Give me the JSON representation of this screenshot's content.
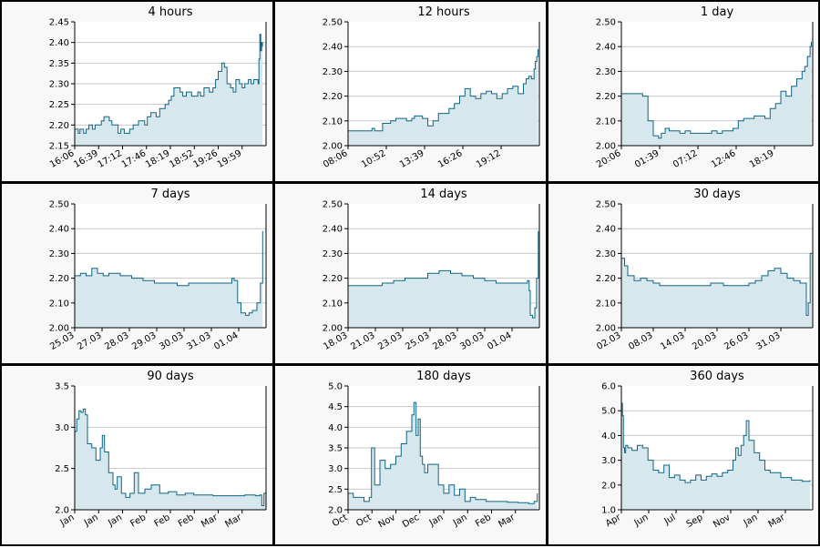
{
  "chart_data": [
    {
      "type": "area",
      "title": "4 hours",
      "ylim": [
        2.15,
        2.45
      ],
      "yticks": [
        "2.15",
        "2.20",
        "2.25",
        "2.30",
        "2.35",
        "2.40",
        "2.45"
      ],
      "xticks": [
        "16:06",
        "16:39",
        "17:12",
        "17:46",
        "18:19",
        "18:52",
        "19:26",
        "19:59"
      ],
      "xlim": [
        0,
        216
      ],
      "grid": true,
      "x": [
        0,
        4,
        6,
        10,
        13,
        16,
        20,
        23,
        26,
        30,
        33,
        36,
        39,
        42,
        46,
        49,
        52,
        56,
        59,
        62,
        66,
        69,
        72,
        76,
        79,
        82,
        86,
        89,
        92,
        96,
        99,
        102,
        106,
        109,
        112,
        116,
        119,
        122,
        126,
        129,
        132,
        136,
        139,
        142,
        146,
        149,
        152,
        156,
        159,
        162,
        166,
        169,
        172,
        176,
        179,
        182,
        186,
        189,
        192,
        196,
        199,
        202,
        205,
        207,
        208,
        209,
        210,
        211,
        212
      ],
      "values": [
        2.19,
        2.18,
        2.19,
        2.18,
        2.19,
        2.2,
        2.19,
        2.2,
        2.2,
        2.21,
        2.22,
        2.22,
        2.21,
        2.2,
        2.2,
        2.18,
        2.19,
        2.18,
        2.18,
        2.19,
        2.2,
        2.2,
        2.21,
        2.21,
        2.2,
        2.22,
        2.23,
        2.23,
        2.22,
        2.24,
        2.24,
        2.25,
        2.26,
        2.27,
        2.29,
        2.29,
        2.28,
        2.27,
        2.28,
        2.28,
        2.27,
        2.27,
        2.28,
        2.27,
        2.29,
        2.29,
        2.28,
        2.29,
        2.31,
        2.33,
        2.35,
        2.34,
        2.3,
        2.29,
        2.28,
        2.31,
        2.3,
        2.29,
        2.3,
        2.31,
        2.3,
        2.31,
        2.31,
        2.3,
        2.36,
        2.42,
        2.38,
        2.4,
        2.39
      ]
    },
    {
      "type": "area",
      "title": "12 hours",
      "ylim": [
        2.0,
        2.5
      ],
      "yticks": [
        "2.00",
        "2.10",
        "2.20",
        "2.30",
        "2.40",
        "2.50"
      ],
      "xticks": [
        "08:06",
        "10:52",
        "13:39",
        "16:26",
        "19:12"
      ],
      "xlim": [
        0,
        720
      ],
      "grid": true,
      "x": [
        0,
        30,
        60,
        90,
        100,
        130,
        160,
        180,
        200,
        220,
        240,
        250,
        260,
        280,
        300,
        320,
        340,
        360,
        380,
        400,
        420,
        440,
        460,
        480,
        500,
        520,
        540,
        560,
        580,
        600,
        620,
        640,
        660,
        670,
        680,
        690,
        700,
        705,
        710,
        715
      ],
      "values": [
        2.06,
        2.06,
        2.06,
        2.07,
        2.06,
        2.09,
        2.1,
        2.11,
        2.11,
        2.1,
        2.11,
        2.12,
        2.12,
        2.11,
        2.08,
        2.1,
        2.13,
        2.13,
        2.15,
        2.17,
        2.2,
        2.23,
        2.2,
        2.19,
        2.21,
        2.22,
        2.21,
        2.19,
        2.21,
        2.23,
        2.24,
        2.21,
        2.25,
        2.27,
        2.28,
        2.27,
        2.31,
        2.34,
        2.36,
        2.39
      ]
    },
    {
      "type": "area",
      "title": "1 day",
      "ylim": [
        2.0,
        2.5
      ],
      "yticks": [
        "2.00",
        "2.10",
        "2.20",
        "2.30",
        "2.40",
        "2.50"
      ],
      "xticks": [
        "20:06",
        "01:39",
        "07:12",
        "12:46",
        "18:19"
      ],
      "xlim": [
        0,
        1440
      ],
      "grid": true,
      "x": [
        0,
        60,
        120,
        160,
        200,
        240,
        280,
        300,
        330,
        360,
        400,
        440,
        480,
        520,
        560,
        600,
        640,
        680,
        720,
        760,
        800,
        840,
        880,
        920,
        960,
        1000,
        1040,
        1080,
        1120,
        1160,
        1200,
        1240,
        1280,
        1320,
        1360,
        1380,
        1400,
        1420,
        1430
      ],
      "values": [
        2.21,
        2.21,
        2.21,
        2.2,
        2.1,
        2.04,
        2.03,
        2.05,
        2.07,
        2.06,
        2.06,
        2.05,
        2.06,
        2.05,
        2.05,
        2.05,
        2.05,
        2.06,
        2.05,
        2.06,
        2.06,
        2.07,
        2.1,
        2.11,
        2.11,
        2.12,
        2.12,
        2.11,
        2.15,
        2.17,
        2.22,
        2.2,
        2.24,
        2.27,
        2.3,
        2.32,
        2.36,
        2.4,
        2.42
      ]
    },
    {
      "type": "area",
      "title": "7 days",
      "ylim": [
        2.0,
        2.5
      ],
      "yticks": [
        "2.00",
        "2.10",
        "2.20",
        "2.30",
        "2.40",
        "2.50"
      ],
      "xticks": [
        "25.03",
        "27.03",
        "28.03",
        "29.03",
        "30.03",
        "31.03",
        "01.04"
      ],
      "xlim": [
        0,
        168
      ],
      "grid": true,
      "x": [
        0,
        5,
        10,
        15,
        20,
        25,
        30,
        40,
        50,
        60,
        70,
        80,
        90,
        100,
        110,
        120,
        130,
        135,
        138,
        140,
        143,
        146,
        150,
        153,
        156,
        160,
        163,
        165
      ],
      "values": [
        2.21,
        2.22,
        2.21,
        2.24,
        2.22,
        2.21,
        2.22,
        2.21,
        2.2,
        2.19,
        2.18,
        2.18,
        2.17,
        2.18,
        2.18,
        2.18,
        2.18,
        2.18,
        2.2,
        2.19,
        2.1,
        2.06,
        2.05,
        2.06,
        2.07,
        2.1,
        2.18,
        2.39
      ]
    },
    {
      "type": "area",
      "title": "14 days",
      "ylim": [
        2.0,
        2.5
      ],
      "yticks": [
        "2.00",
        "2.10",
        "2.20",
        "2.30",
        "2.40",
        "2.50"
      ],
      "xticks": [
        "18.03",
        "21.03",
        "23.03",
        "25.03",
        "28.03",
        "30.03",
        "01.04"
      ],
      "xlim": [
        0,
        336
      ],
      "grid": true,
      "x": [
        0,
        20,
        40,
        60,
        80,
        100,
        120,
        140,
        160,
        180,
        200,
        220,
        240,
        260,
        280,
        300,
        310,
        315,
        318,
        320,
        324,
        328,
        331,
        334
      ],
      "values": [
        2.17,
        2.17,
        2.17,
        2.18,
        2.19,
        2.2,
        2.2,
        2.22,
        2.23,
        2.22,
        2.21,
        2.2,
        2.19,
        2.18,
        2.18,
        2.18,
        2.18,
        2.19,
        2.15,
        2.05,
        2.04,
        2.08,
        2.2,
        2.39
      ]
    },
    {
      "type": "area",
      "title": "30 days",
      "ylim": [
        2.0,
        2.5
      ],
      "yticks": [
        "2.00",
        "2.10",
        "2.20",
        "2.30",
        "2.40",
        "2.50"
      ],
      "xticks": [
        "02.03",
        "08.03",
        "14.03",
        "20.03",
        "26.03",
        "31.03"
      ],
      "xlim": [
        0,
        30
      ],
      "grid": true,
      "x": [
        0,
        0.5,
        1,
        2,
        3,
        4,
        5,
        6,
        8,
        10,
        12,
        14,
        16,
        18,
        20,
        21,
        22,
        23,
        24,
        25,
        26,
        27,
        28,
        28.5,
        29,
        29.3,
        29.6,
        30
      ],
      "values": [
        2.28,
        2.25,
        2.21,
        2.19,
        2.2,
        2.19,
        2.18,
        2.17,
        2.17,
        2.17,
        2.17,
        2.18,
        2.17,
        2.17,
        2.18,
        2.19,
        2.21,
        2.23,
        2.24,
        2.22,
        2.2,
        2.19,
        2.18,
        2.18,
        2.05,
        2.1,
        2.3,
        2.39
      ]
    },
    {
      "type": "area",
      "title": "90 days",
      "ylim": [
        2.0,
        3.5
      ],
      "yticks": [
        "2.0",
        "2.5",
        "3.0",
        "3.5"
      ],
      "xticks": [
        "Jan",
        "Jan",
        "Jan",
        "Feb",
        "Feb",
        "Feb",
        "Mar",
        "Mar"
      ],
      "xlim": [
        0,
        90
      ],
      "grid": true,
      "x": [
        0,
        1,
        2,
        3,
        4,
        5,
        6,
        8,
        10,
        12,
        13,
        14,
        16,
        18,
        19,
        20,
        22,
        24,
        26,
        28,
        30,
        33,
        36,
        40,
        44,
        48,
        52,
        56,
        60,
        65,
        70,
        75,
        80,
        85,
        87,
        88,
        89,
        90
      ],
      "values": [
        2.95,
        3.1,
        3.2,
        3.18,
        3.22,
        3.15,
        2.8,
        2.75,
        2.6,
        2.75,
        2.9,
        2.7,
        2.45,
        2.3,
        2.25,
        2.4,
        2.2,
        2.15,
        2.2,
        2.45,
        2.2,
        2.25,
        2.3,
        2.2,
        2.22,
        2.18,
        2.2,
        2.18,
        2.18,
        2.17,
        2.17,
        2.17,
        2.18,
        2.17,
        2.18,
        2.05,
        2.2,
        2.4
      ]
    },
    {
      "type": "area",
      "title": "180 days",
      "ylim": [
        2.0,
        5.0
      ],
      "yticks": [
        "2.0",
        "2.5",
        "3.0",
        "3.5",
        "4.0",
        "4.5",
        "5.0"
      ],
      "xticks": [
        "Oct",
        "Oct",
        "Nov",
        "Dec",
        "Jan",
        "Jan",
        "Feb",
        "Mar"
      ],
      "xlim": [
        0,
        180
      ],
      "grid": true,
      "x": [
        0,
        5,
        10,
        15,
        20,
        22,
        25,
        30,
        35,
        40,
        45,
        50,
        55,
        60,
        62,
        64,
        66,
        68,
        70,
        72,
        75,
        80,
        85,
        90,
        95,
        100,
        105,
        110,
        115,
        120,
        130,
        140,
        150,
        160,
        170,
        175,
        178
      ],
      "values": [
        2.4,
        2.3,
        2.3,
        2.2,
        2.3,
        3.5,
        2.6,
        3.2,
        3.0,
        3.1,
        3.3,
        3.6,
        3.9,
        4.3,
        4.6,
        3.8,
        4.2,
        3.3,
        3.1,
        2.9,
        3.1,
        3.1,
        2.6,
        2.4,
        2.6,
        2.35,
        2.5,
        2.2,
        2.3,
        2.25,
        2.2,
        2.2,
        2.18,
        2.17,
        2.15,
        2.2,
        2.4
      ]
    },
    {
      "type": "area",
      "title": "360 days",
      "ylim": [
        1.0,
        6.0
      ],
      "yticks": [
        "1.0",
        "2.0",
        "3.0",
        "4.0",
        "5.0",
        "6.0"
      ],
      "xticks": [
        "Apr",
        "Jun",
        "Jul",
        "Sep",
        "Nov",
        "Jan",
        "Mar"
      ],
      "xlim": [
        0,
        360
      ],
      "grid": true,
      "x": [
        0,
        2,
        4,
        6,
        8,
        12,
        20,
        30,
        40,
        50,
        60,
        70,
        80,
        90,
        100,
        110,
        120,
        130,
        140,
        150,
        160,
        170,
        180,
        190,
        200,
        210,
        215,
        220,
        225,
        230,
        235,
        240,
        250,
        260,
        270,
        280,
        300,
        320,
        340,
        355
      ],
      "values": [
        5.3,
        4.8,
        3.5,
        3.3,
        3.6,
        3.5,
        3.4,
        3.6,
        3.5,
        3.0,
        2.6,
        2.5,
        2.8,
        2.3,
        2.4,
        2.2,
        2.1,
        2.2,
        2.4,
        2.2,
        2.35,
        2.45,
        2.35,
        2.5,
        2.6,
        3.0,
        3.5,
        3.2,
        3.6,
        4.0,
        4.6,
        3.8,
        3.3,
        3.0,
        2.6,
        2.5,
        2.3,
        2.2,
        2.15,
        2.2
      ]
    }
  ]
}
